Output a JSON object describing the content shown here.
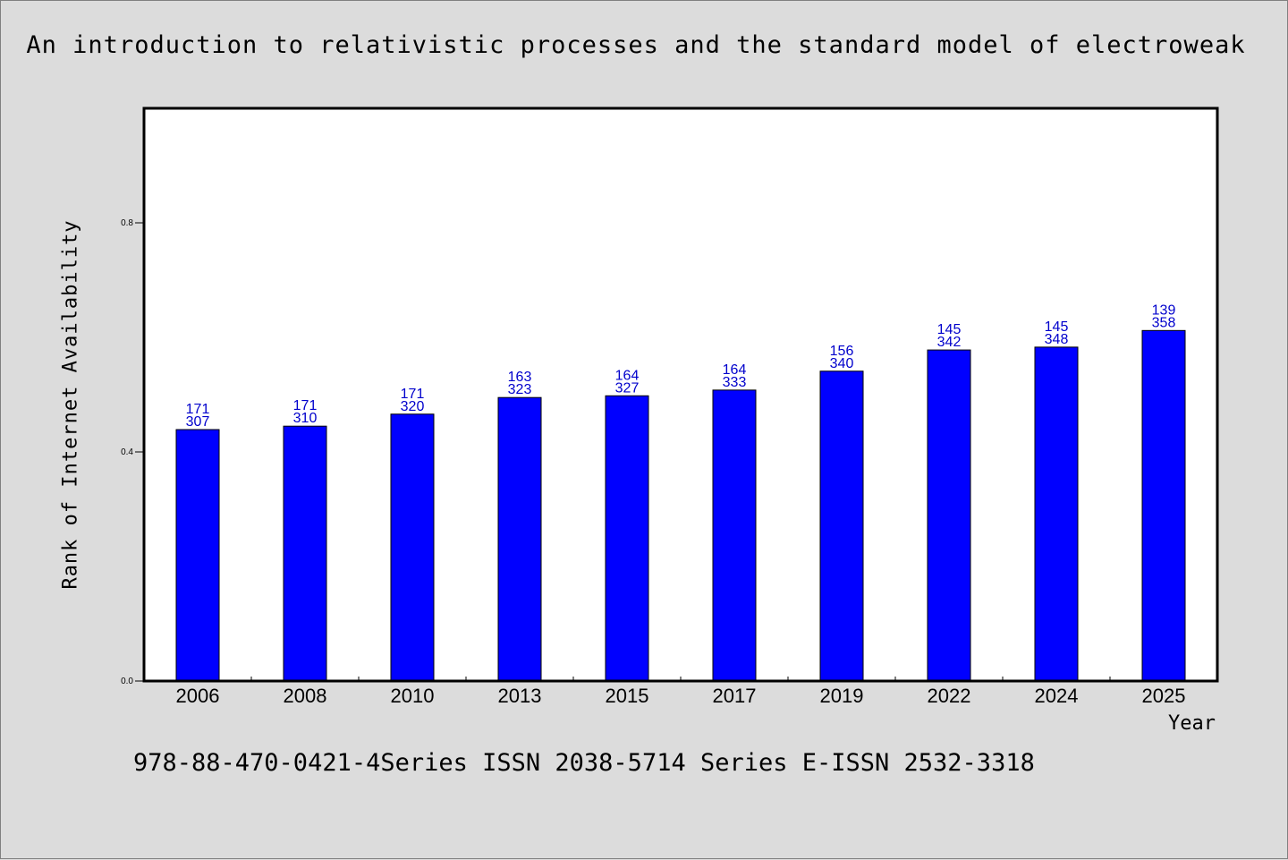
{
  "colors": {
    "bar": "#0000ff",
    "label": "#0000cc",
    "background": "#dcdcdc",
    "plot": "#ffffff"
  },
  "footer": "978-88-470-0421-4Series ISSN 2038-5714 Series E-ISSN 2532-3318",
  "chart_data": {
    "type": "bar",
    "title": "An introduction to relativistic processes and the standard model of electroweak",
    "xlabel": "Year",
    "ylabel": "Rank of Internet Availability",
    "ylim": [
      0,
      1
    ],
    "yticks": [
      "0.0",
      "0.4",
      "0.8"
    ],
    "grid": false,
    "categories": [
      "2006",
      "2008",
      "2010",
      "2013",
      "2015",
      "2017",
      "2019",
      "2022",
      "2024",
      "2025"
    ],
    "values": [
      0.439,
      0.445,
      0.466,
      0.495,
      0.498,
      0.508,
      0.541,
      0.578,
      0.583,
      0.612
    ],
    "labels_top": [
      "171",
      "171",
      "171",
      "163",
      "164",
      "164",
      "156",
      "145",
      "145",
      "139"
    ],
    "labels_bottom": [
      "307",
      "310",
      "320",
      "323",
      "327",
      "333",
      "340",
      "342",
      "348",
      "358"
    ]
  }
}
